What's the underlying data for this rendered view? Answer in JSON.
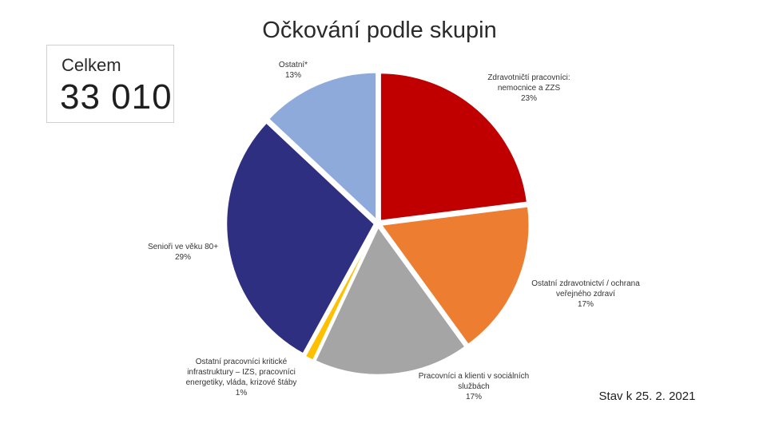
{
  "chart_data": {
    "type": "pie",
    "title": "Očkování podle skupin",
    "slices": [
      {
        "label": [
          "Zdravotničtí pracovníci:",
          "nemocnice a ZZS"
        ],
        "value": 23,
        "value_label": "23%",
        "color": "#c00000"
      },
      {
        "label": [
          "Ostatní zdravotnictví / ochrana",
          "veřejného zdraví"
        ],
        "value": 17,
        "value_label": "17%",
        "color": "#ed7d31"
      },
      {
        "label": [
          "Pracovníci a klienti v sociálních",
          "službách"
        ],
        "value": 17,
        "value_label": "17%",
        "color": "#a5a5a5"
      },
      {
        "label": [
          "Ostatní pracovníci kritické",
          "infrastruktury – IZS, pracovníci",
          "energetiky, vláda, krizové štáby"
        ],
        "value": 1,
        "value_label": "1%",
        "color": "#ffc000"
      },
      {
        "label": [
          "Senioři ve věku 80+"
        ],
        "value": 29,
        "value_label": "29%",
        "color": "#2e2f80"
      },
      {
        "label": [
          "Ostatní*"
        ],
        "value": 13,
        "value_label": "13%",
        "color": "#8eaadb"
      }
    ]
  },
  "summary": {
    "total_label": "Celkem",
    "total_value": "33 010"
  },
  "footer": {
    "stand_text": "Stav k 25. 2. 2021"
  }
}
